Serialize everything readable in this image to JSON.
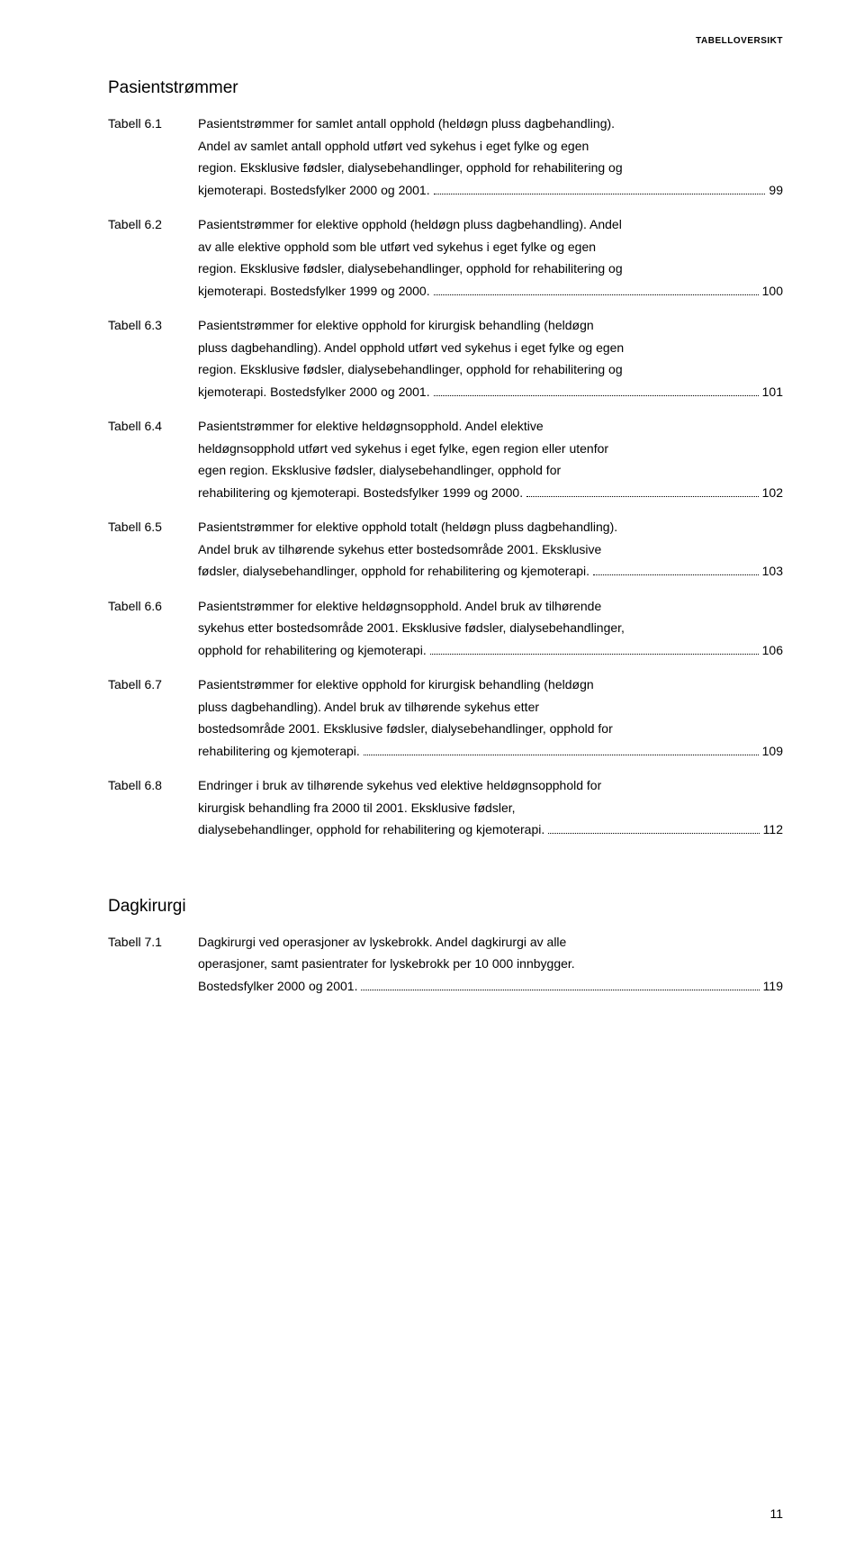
{
  "running_head": "TABELLOVERSIKT",
  "page_number": "11",
  "sections": [
    {
      "heading": "Pasientstrømmer",
      "entries": [
        {
          "label": "Tabell 6.1",
          "lines": [
            "Pasientstrømmer for samlet antall opphold (heldøgn pluss dagbehandling).",
            "Andel av samlet antall opphold  utført ved sykehus i eget fylke og egen",
            "region. Eksklusive fødsler, dialysebehandlinger, opphold for rehabilitering og"
          ],
          "last": "kjemoterapi. Bostedsfylker 2000 og 2001.",
          "page": "99"
        },
        {
          "label": "Tabell 6.2",
          "lines": [
            "Pasientstrømmer for elektive opphold (heldøgn pluss dagbehandling). Andel",
            "av alle elektive opphold som ble utført ved sykehus i eget fylke og egen",
            "region. Eksklusive fødsler, dialysebehandlinger, opphold for rehabilitering og"
          ],
          "last": "kjemoterapi. Bostedsfylker 1999 og 2000.",
          "page": "100"
        },
        {
          "label": "Tabell 6.3",
          "lines": [
            "Pasientstrømmer for elektive opphold for kirurgisk behandling (heldøgn",
            "pluss dagbehandling). Andel opphold utført ved sykehus i eget fylke og egen",
            "region. Eksklusive fødsler, dialysebehandlinger, opphold for rehabilitering og"
          ],
          "last": "kjemoterapi. Bostedsfylker 2000 og 2001.",
          "page": "101"
        },
        {
          "label": "Tabell 6.4",
          "lines": [
            "Pasientstrømmer for elektive heldøgnsopphold. Andel elektive",
            "heldøgnsopphold utført ved sykehus i eget fylke, egen region eller utenfor",
            "egen region. Eksklusive fødsler, dialysebehandlinger, opphold for"
          ],
          "last": "rehabilitering og kjemoterapi. Bostedsfylker 1999 og 2000. ",
          "page": "102"
        },
        {
          "label": "Tabell 6.5",
          "lines": [
            "Pasientstrømmer for elektive opphold totalt (heldøgn pluss dagbehandling).",
            "Andel bruk av tilhørende sykehus etter bostedsområde 2001. Eksklusive"
          ],
          "last": "fødsler, dialysebehandlinger, opphold for rehabilitering og kjemoterapi.",
          "page": "103"
        },
        {
          "label": "Tabell 6.6",
          "lines": [
            "Pasientstrømmer for elektive heldøgnsopphold. Andel bruk av tilhørende",
            "sykehus etter bostedsområde 2001. Eksklusive fødsler, dialysebehandlinger,"
          ],
          "last": "opphold for rehabilitering og kjemoterapi. ",
          "page": "106"
        },
        {
          "label": "Tabell 6.7",
          "lines": [
            "Pasientstrømmer for elektive opphold for kirurgisk behandling (heldøgn",
            "pluss dagbehandling). Andel bruk av tilhørende sykehus etter",
            "bostedsområde 2001. Eksklusive fødsler, dialysebehandlinger, opphold for"
          ],
          "last": "rehabilitering og kjemoterapi.",
          "page": "109"
        },
        {
          "label": "Tabell 6.8",
          "lines": [
            "Endringer i bruk av tilhørende sykehus ved elektive heldøgnsopphold for",
            "kirurgisk behandling fra 2000 til 2001. Eksklusive fødsler,"
          ],
          "last": "dialysebehandlinger, opphold for rehabilitering og kjemoterapi. ",
          "page": "112"
        }
      ]
    },
    {
      "heading": "Dagkirurgi",
      "entries": [
        {
          "label": "Tabell 7.1",
          "lines": [
            "Dagkirurgi ved operasjoner av lyskebrokk. Andel dagkirurgi av alle",
            "operasjoner, samt pasientrater for lyskebrokk per 10 000 innbygger."
          ],
          "last": "Bostedsfylker 2000 og 2001.",
          "page": "119"
        }
      ]
    }
  ]
}
